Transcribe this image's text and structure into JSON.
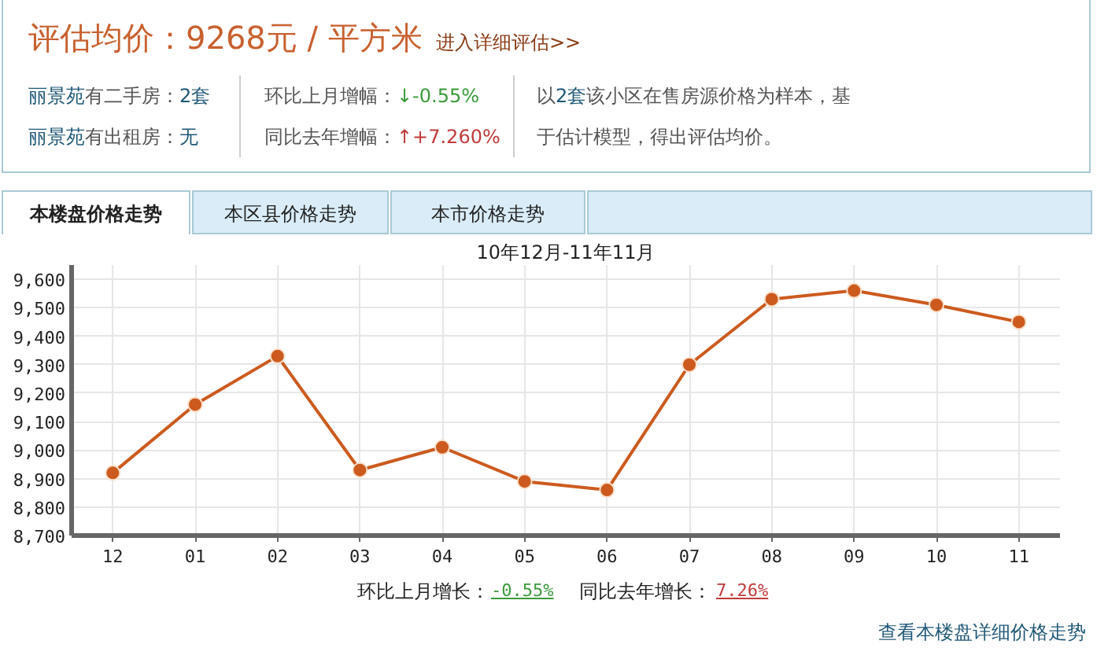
{
  "chart_data": {
    "type": "line",
    "title": "10年12月-11年11月",
    "categories": [
      "12",
      "01",
      "02",
      "03",
      "04",
      "05",
      "06",
      "07",
      "08",
      "09",
      "10",
      "11"
    ],
    "values": [
      8920,
      9160,
      9330,
      8930,
      9010,
      8890,
      8860,
      9300,
      9530,
      9560,
      9510,
      9450
    ],
    "color": "#cc5a1e",
    "ylim": [
      8700,
      9650
    ],
    "yticks": [
      {
        "value": 8700,
        "label": "8,700"
      },
      {
        "value": 8800,
        "label": "8,800"
      },
      {
        "value": 8900,
        "label": "8,900"
      },
      {
        "value": 9000,
        "label": "9,000"
      },
      {
        "value": 9100,
        "label": "9,100"
      },
      {
        "value": 9200,
        "label": "9,200"
      },
      {
        "value": 9300,
        "label": "9,300"
      },
      {
        "value": 9400,
        "label": "9,400"
      },
      {
        "value": 9500,
        "label": "9,500"
      },
      {
        "value": 9600,
        "label": "9,600"
      }
    ],
    "grid": true,
    "marker": "circle",
    "line_style": "solid",
    "annotations": [
      "评估均价：9268元 / 平方米",
      "进入详细评估>>",
      "丽景苑",
      "有二手房：",
      "2套",
      "丽景苑",
      "有出租房：",
      "无",
      "环比上月增幅：",
      "↓-0.55%",
      "同比去年增幅：",
      "↑+7.260%",
      "以",
      "2套",
      "该小区在售房源价格为样本，基",
      "于估计模型，得出评估均价。",
      "本楼盘价格走势",
      "本区县价格走势",
      "本市价格走势",
      "环比上月增长：",
      "-0.55%",
      "同比去年增长：",
      "7.26%",
      "查看本楼盘详细价格走势"
    ]
  }
}
